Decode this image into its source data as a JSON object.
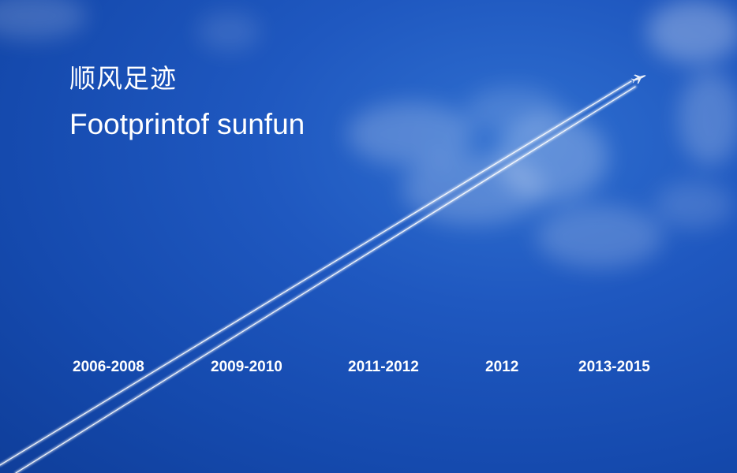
{
  "header": {
    "title_cn": "顺风足迹",
    "title_en": "Footprintof sunfun"
  },
  "timeline": {
    "items": [
      {
        "label": "2006-2008"
      },
      {
        "label": "2009-2010"
      },
      {
        "label": "2011-2012"
      },
      {
        "label": "2012"
      },
      {
        "label": "2013-2015"
      }
    ]
  },
  "colors": {
    "sky": "#1f58c0",
    "text": "#ffffff",
    "contrail": "#ffffff"
  },
  "icons": {
    "airplane": "airplane-icon"
  }
}
